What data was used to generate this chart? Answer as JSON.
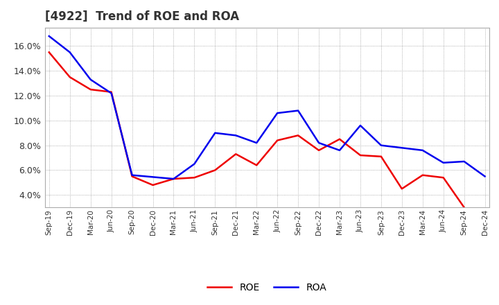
{
  "title": "[4922]  Trend of ROE and ROA",
  "labels": [
    "Sep-19",
    "Dec-19",
    "Mar-20",
    "Jun-20",
    "Sep-20",
    "Dec-20",
    "Mar-21",
    "Jun-21",
    "Sep-21",
    "Dec-21",
    "Mar-22",
    "Jun-22",
    "Sep-22",
    "Dec-22",
    "Mar-23",
    "Jun-23",
    "Sep-23",
    "Dec-23",
    "Mar-24",
    "Jun-24",
    "Sep-24",
    "Dec-24"
  ],
  "ROE": [
    15.5,
    13.5,
    12.5,
    12.3,
    5.5,
    4.8,
    5.3,
    5.4,
    6.0,
    7.3,
    6.4,
    8.4,
    8.8,
    7.6,
    8.5,
    7.2,
    7.1,
    4.5,
    5.6,
    5.4,
    3.0,
    null
  ],
  "ROA": [
    16.8,
    15.5,
    13.3,
    12.2,
    5.6,
    5.45,
    5.3,
    6.5,
    9.0,
    8.8,
    8.2,
    10.6,
    10.8,
    8.2,
    7.6,
    9.6,
    8.0,
    7.8,
    7.6,
    6.6,
    6.7,
    5.5
  ],
  "roe_color": "#ee0000",
  "roa_color": "#0000ee",
  "background_color": "#ffffff",
  "grid_color": "#999999",
  "ylim": [
    3.0,
    17.5
  ],
  "yticks": [
    4.0,
    6.0,
    8.0,
    10.0,
    12.0,
    14.0,
    16.0
  ],
  "title_fontsize": 12,
  "title_color": "#333333",
  "line_width": 1.8
}
